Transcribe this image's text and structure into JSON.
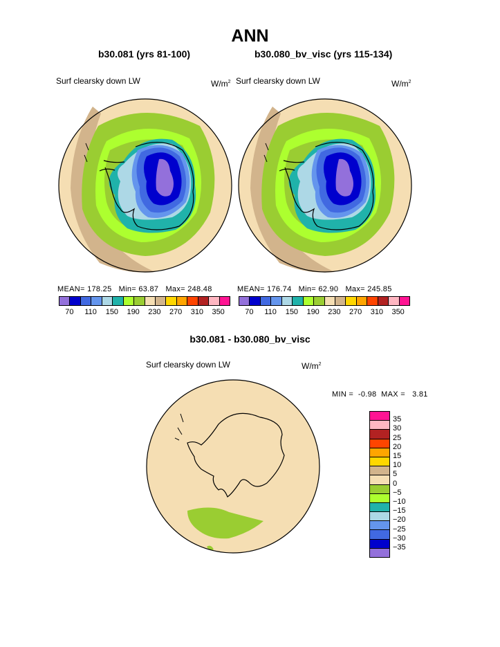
{
  "title": "ANN",
  "panels": [
    {
      "subtitle": "b30.081 (yrs 81-100)",
      "variable": "Surf clearsky down LW",
      "units": "W/m",
      "units_sup": "2",
      "stats": {
        "mean_label": "MEAN=",
        "mean": "178.25",
        "min_label": "Min=",
        "min": "63.87",
        "max_label": "Max=",
        "max": "248.48"
      }
    },
    {
      "subtitle": "b30.080_bv_visc (yrs 115-134)",
      "variable": "Surf clearsky down LW",
      "units": "W/m",
      "units_sup": "2",
      "stats": {
        "mean_label": "MEAN=",
        "mean": "176.74",
        "min_label": "Min=",
        "min": "62.90",
        "max_label": "Max=",
        "max": "245.85"
      }
    }
  ],
  "top_colorbar": {
    "colors": [
      "#9370db",
      "#0000cd",
      "#4169e1",
      "#6495ed",
      "#add8e6",
      "#20b2aa",
      "#adff2f",
      "#9acd32",
      "#f5deb3",
      "#d2b48c",
      "#ffd700",
      "#ffa500",
      "#ff4500",
      "#b22222",
      "#ffb6c1",
      "#ff1493"
    ],
    "tick_labels": [
      "70",
      "110",
      "150",
      "190",
      "230",
      "270",
      "310",
      "350"
    ]
  },
  "difference": {
    "subtitle": "b30.081 - b30.080_bv_visc",
    "variable": "Surf clearsky down LW",
    "units": "W/m",
    "units_sup": "2",
    "min_label": "MIN =",
    "min": "-0.98",
    "max_label": "MAX =",
    "max": "3.81",
    "colorbar_colors": [
      "#ff1493",
      "#ffb6c1",
      "#b22222",
      "#ff4500",
      "#ffa500",
      "#ffd700",
      "#d2b48c",
      "#f5deb3",
      "#9acd32",
      "#adff2f",
      "#20b2aa",
      "#add8e6",
      "#6495ed",
      "#4169e1",
      "#0000cd",
      "#9370db"
    ],
    "colorbar_labels": [
      "35",
      "30",
      "25",
      "20",
      "15",
      "10",
      "5",
      "0",
      "−5",
      "−10",
      "−15",
      "−20",
      "−25",
      "−30",
      "−35"
    ]
  }
}
